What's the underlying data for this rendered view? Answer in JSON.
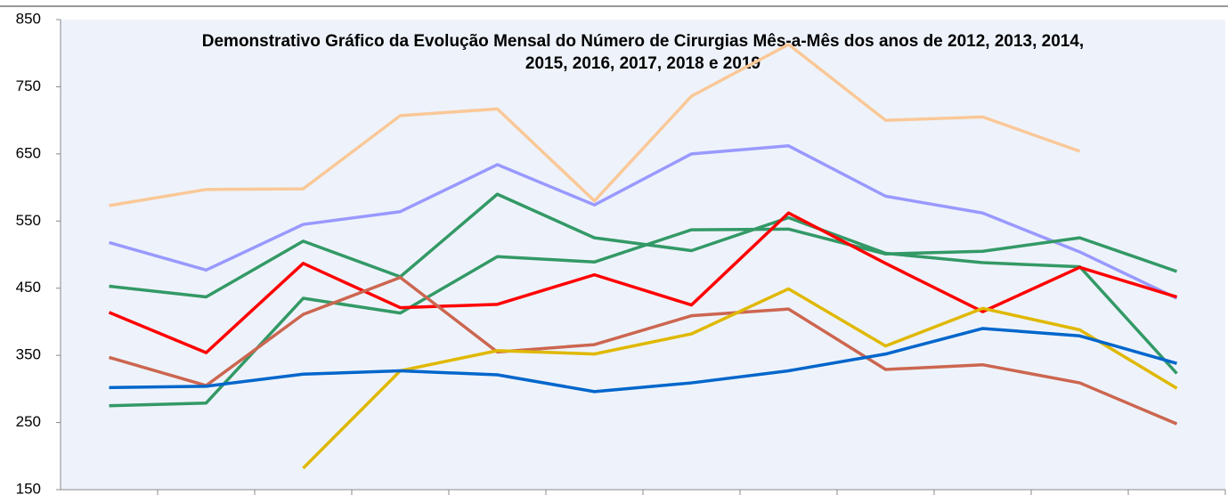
{
  "chart_data": {
    "type": "line",
    "title": [
      "Demonstrativo Gráfico da Evolução Mensal do Número de Cirurgias Mês-a-Mês dos anos de  2012, 2013, 2014,",
      "2015, 2016, 2017, 2018 e 2019"
    ],
    "categories": [
      null,
      null,
      null,
      null,
      null,
      null,
      null,
      null,
      null,
      null,
      null,
      null
    ],
    "ylim": [
      150,
      850
    ],
    "yticks": [
      150,
      250,
      350,
      450,
      550,
      650,
      750,
      850
    ],
    "grid": false,
    "series": [
      {
        "color": "#fac898",
        "values": [
          573,
          597,
          598,
          707,
          717,
          580,
          736,
          813,
          700,
          705,
          654,
          null
        ]
      },
      {
        "color": "#9999ff",
        "values": [
          518,
          477,
          545,
          564,
          634,
          574,
          650,
          662,
          587,
          562,
          504,
          435
        ]
      },
      {
        "color": "#339966",
        "values": [
          453,
          437,
          520,
          467,
          590,
          525,
          506,
          555,
          502,
          488,
          482,
          323
        ]
      },
      {
        "color": "#339966",
        "values": [
          275,
          279,
          435,
          413,
          497,
          489,
          537,
          538,
          501,
          505,
          525,
          475
        ]
      },
      {
        "color": "#ff0000",
        "values": [
          414,
          354,
          487,
          421,
          426,
          470,
          425,
          562,
          487,
          415,
          481,
          437
        ]
      },
      {
        "color": "#cc6650",
        "values": [
          347,
          305,
          411,
          466,
          355,
          366,
          409,
          419,
          329,
          336,
          309,
          248
        ]
      },
      {
        "color": "#e0b800",
        "values": [
          null,
          null,
          182,
          327,
          357,
          352,
          382,
          449,
          364,
          420,
          388,
          301
        ]
      },
      {
        "color": "#0066cc",
        "values": [
          302,
          304,
          322,
          327,
          321,
          296,
          309,
          327,
          352,
          390,
          379,
          338
        ]
      }
    ]
  }
}
